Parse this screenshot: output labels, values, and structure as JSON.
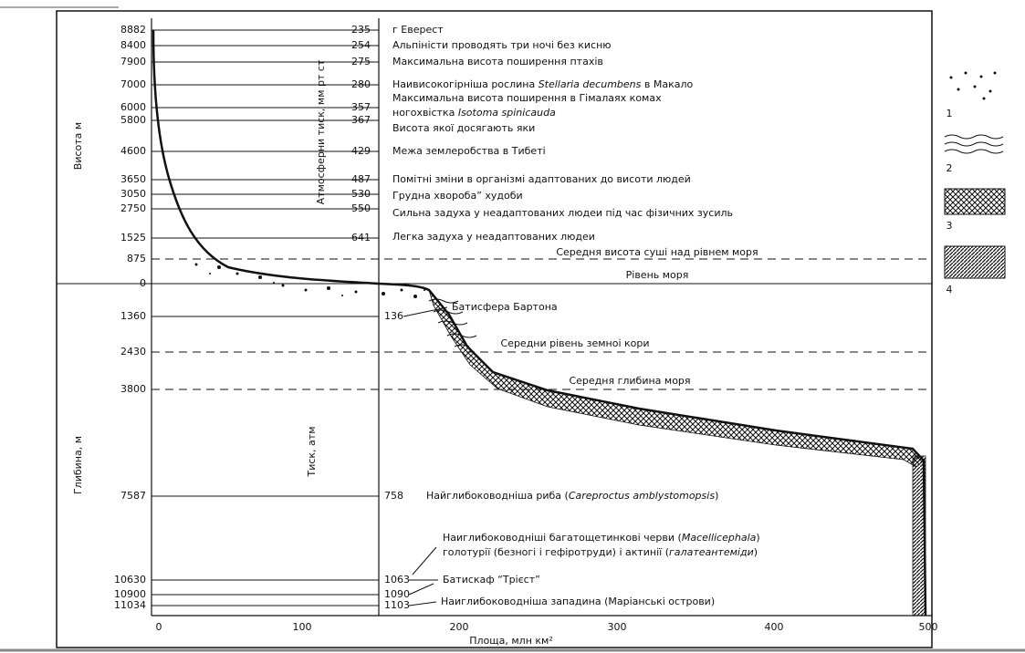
{
  "axis_labels": {
    "height": "Висота м",
    "air_pressure": "Атмосферни тиск, мм рт ст",
    "depth": "Глибина, м",
    "water_pressure": "Тиск, атм",
    "x": "Площа, млн км²"
  },
  "x_ticks": [
    "0",
    "100",
    "200",
    "300",
    "400",
    "500"
  ],
  "levels": [
    {
      "value": "8882",
      "pressure": "235",
      "lines": [
        [
          "г Еверест"
        ]
      ]
    },
    {
      "value": "8400",
      "pressure": "254",
      "lines": [
        [
          "Альпіністи проводять три ночі без кисню"
        ]
      ]
    },
    {
      "value": "7900",
      "pressure": "275",
      "lines": [
        [
          "Максимальна висота поширення птахів"
        ]
      ]
    },
    {
      "value": "7000",
      "pressure": "280",
      "lines": [
        [
          "Наивисокогірніша рослина ",
          "Stellaria decumbens",
          " в Макало"
        ]
      ]
    },
    {
      "value": "6000",
      "pressure": "357",
      "lines": [
        [
          "Максимальна висота поширення в Гімалаях комах"
        ],
        [
          "ногохвістка ",
          "Isotoma spinicauda"
        ]
      ]
    },
    {
      "value": "5800",
      "pressure": "367",
      "lines": [
        [
          "Висота якої досягають яки"
        ]
      ]
    },
    {
      "value": "4600",
      "pressure": "429",
      "lines": [
        [
          "Межа землеробства в Тибеті"
        ]
      ]
    },
    {
      "value": "3650",
      "pressure": "487",
      "lines": [
        [
          "Помітні зміни в організмі  адаптованих до висоти людей"
        ]
      ]
    },
    {
      "value": "3050",
      "pressure": "530",
      "lines": [
        [
          "Грудна хвороба” худоби"
        ]
      ]
    },
    {
      "value": "2750",
      "pressure": "550",
      "lines": [
        [
          "Сильна задуха у неадаптованих людеи під час фізичних зусиль"
        ]
      ]
    },
    {
      "value": "1525",
      "pressure": "641",
      "lines": [
        [
          "Легка задуха у неадаптованих людеи"
        ]
      ]
    },
    {
      "value": "875",
      "lines": [
        [
          "Середня висота суші над рівнем моря"
        ]
      ]
    },
    {
      "value": "0",
      "lines": [
        [
          "Рівень моря"
        ]
      ]
    },
    {
      "value": "1360",
      "pressure": "136",
      "lines": [
        [
          "Батисфера Бартона"
        ]
      ]
    },
    {
      "value": "2430",
      "lines": [
        [
          "Середни рівень земноі кори"
        ]
      ]
    },
    {
      "value": "3800",
      "lines": [
        [
          "Середня глибина моря"
        ]
      ]
    },
    {
      "value": "7587",
      "pressure": "758",
      "lines": [
        [
          "Найглибоководніша риба (",
          "Careproctus amblystomopsis",
          ")"
        ]
      ]
    },
    {
      "lines": [
        [
          "Наиглибоководніші багатощетинкові черви (",
          "Macellicephalа",
          ")"
        ],
        [
          "голотурії (безногі і гефіротруди) і актинії (",
          "галатеантеміди",
          ")"
        ]
      ]
    },
    {
      "value": "10630",
      "pressure": "1063",
      "lines": [
        [
          "Батискаф “Трієст”"
        ]
      ]
    },
    {
      "value": "10900",
      "pressure": "1090"
    },
    {
      "value": "11034",
      "pressure": "1103",
      "lines": [
        [
          "Наиглибоководніша западина (Маріанські острови)"
        ]
      ]
    }
  ],
  "legend": [
    "1",
    "2",
    "3",
    "4"
  ]
}
